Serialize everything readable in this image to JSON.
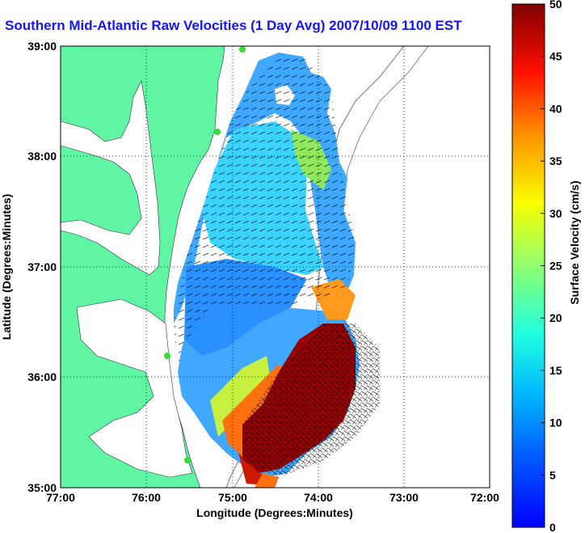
{
  "title": "Southern Mid-Atlantic Raw Velocities (1 Day Avg) 2007/10/09 1100 EST",
  "map": {
    "xlabel": "Longitude (Degrees:Minutes)",
    "ylabel": "Latitude (Degrees:Minutes)",
    "x_ticks": [
      "77:00",
      "76:00",
      "75:00",
      "74:00",
      "73:00",
      "72:00"
    ],
    "y_ticks": [
      "39:00",
      "38:00",
      "37:00",
      "36:00",
      "35:00"
    ],
    "lon_range": [
      -77,
      -72
    ],
    "lat_range": [
      35,
      39
    ],
    "grid": true,
    "land_color": "#5ff5a5",
    "water_color": "#ffffff"
  },
  "colorbar": {
    "label": "Surface Velocity (cm/s)",
    "ticks": [
      "0",
      "5",
      "10",
      "15",
      "20",
      "25",
      "30",
      "35",
      "40",
      "45",
      "50"
    ],
    "range": [
      0,
      50
    ],
    "colormap": "jet"
  }
}
